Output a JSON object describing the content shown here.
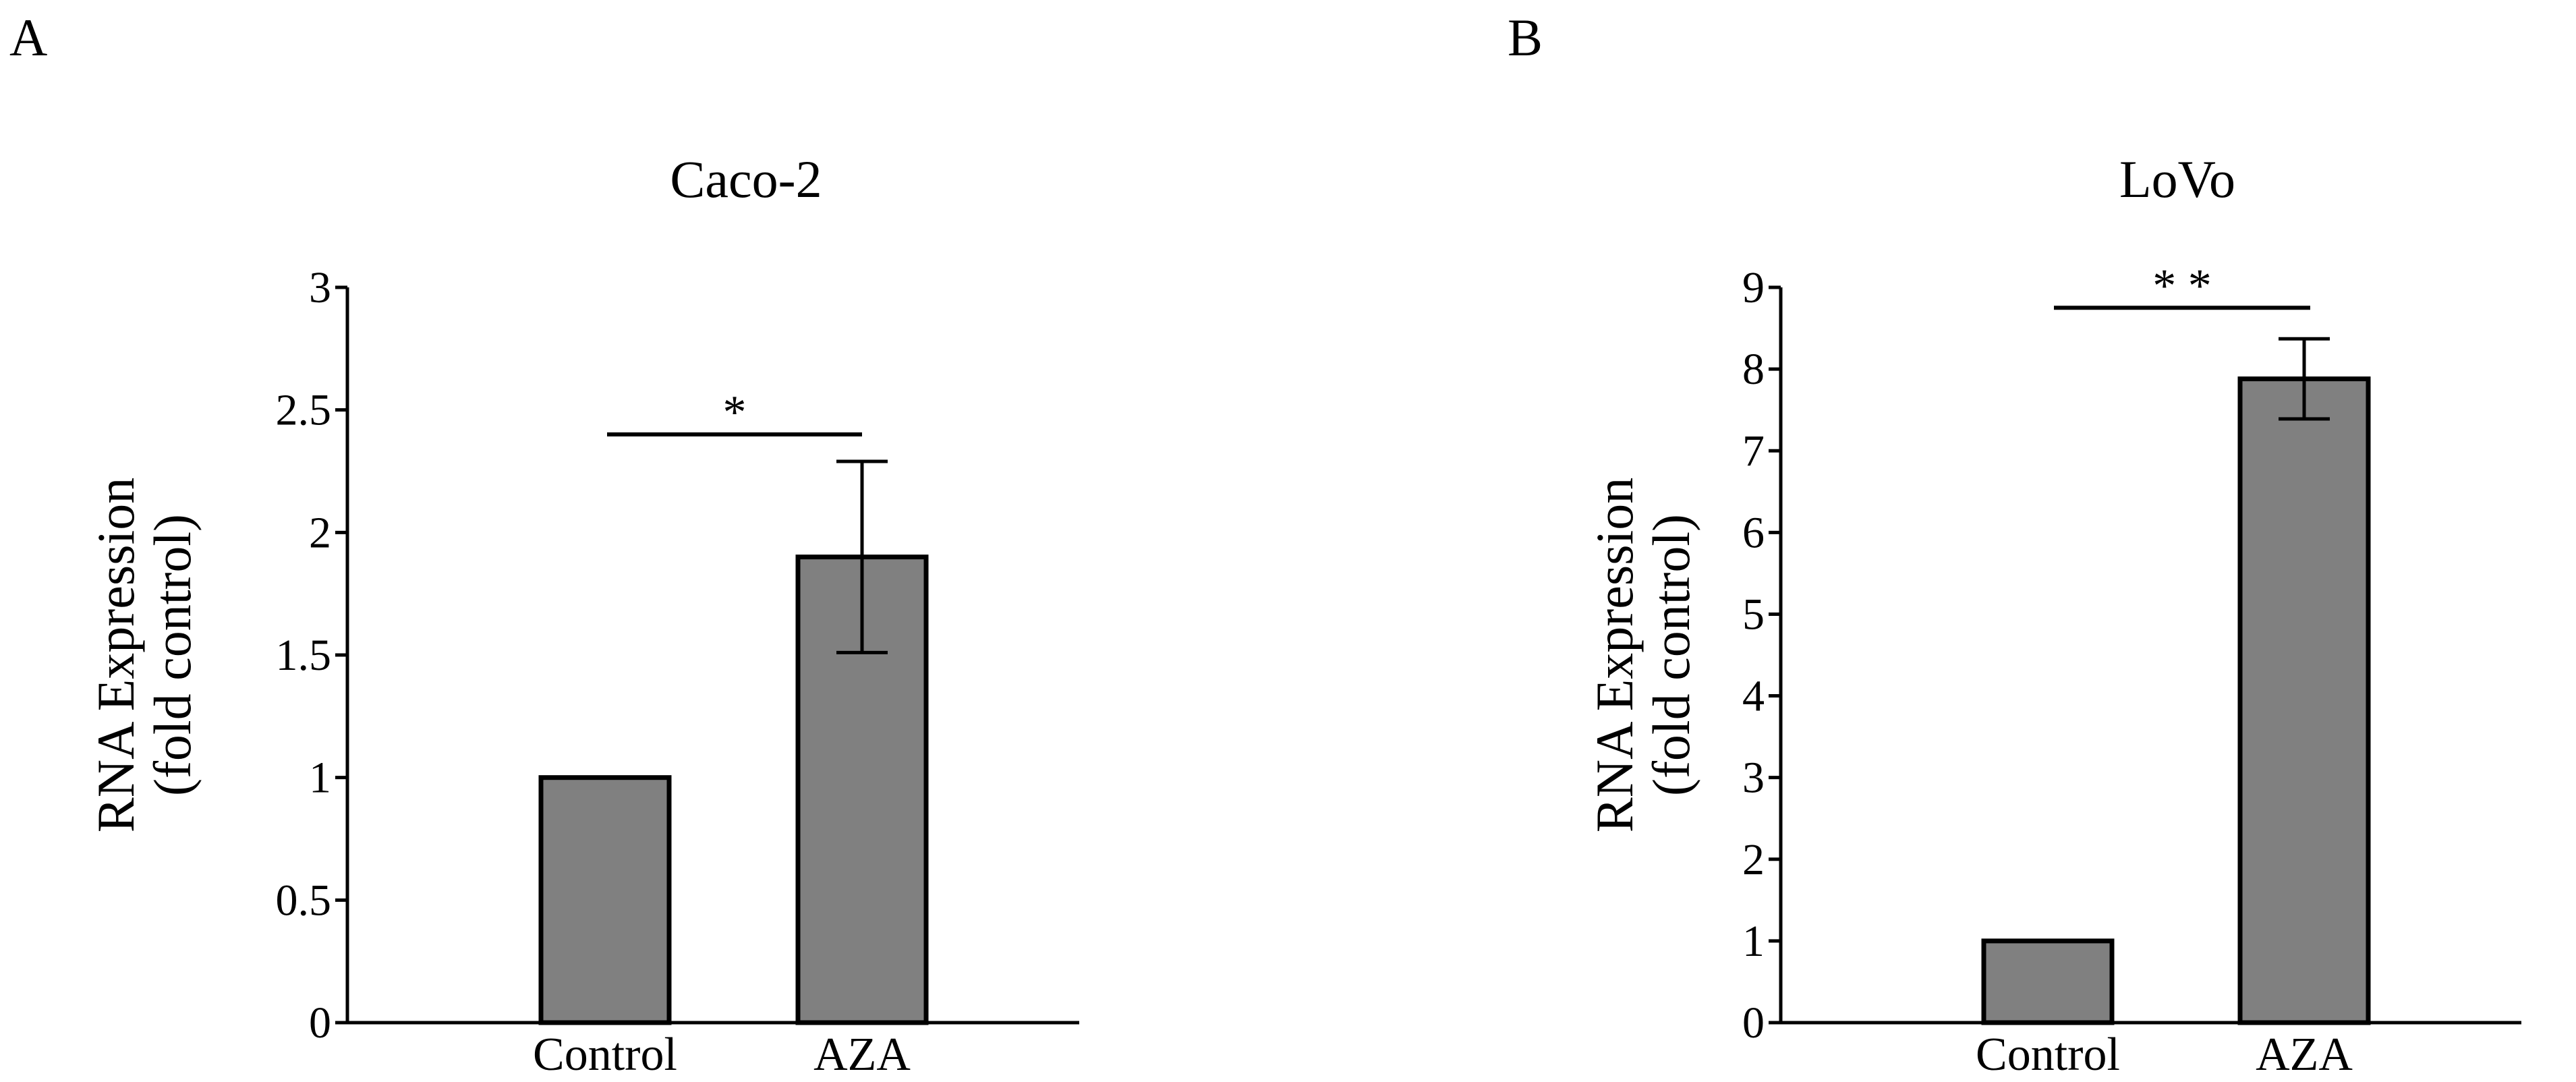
{
  "panels": [
    {
      "letter": "A",
      "chart_data": {
        "type": "bar",
        "title": "Caco-2",
        "xlabel": "",
        "ylabel": [
          "RNA Expression",
          "(fold control)"
        ],
        "categories": [
          "Control",
          "AZA"
        ],
        "values": [
          1.0,
          1.9
        ],
        "errors": [
          0,
          0.39
        ],
        "ylim": [
          0,
          3
        ],
        "yticks": [
          0,
          0.5,
          1,
          1.5,
          2,
          2.5,
          3
        ],
        "ytick_labels": [
          "0",
          "0.5",
          "1",
          "1.5",
          "2",
          "2.5",
          "3"
        ],
        "bar_color": "#808080",
        "grid": false,
        "significance": {
          "between": [
            "Control",
            "AZA"
          ],
          "label": "*",
          "level": 2.4
        }
      }
    },
    {
      "letter": "B",
      "chart_data": {
        "type": "bar",
        "title": "LoVo",
        "xlabel": "",
        "ylabel": [
          "RNA Expression",
          "(fold control)"
        ],
        "categories": [
          "Control",
          "AZA"
        ],
        "values": [
          1.0,
          7.88
        ],
        "errors": [
          0,
          0.49
        ],
        "ylim": [
          0,
          9
        ],
        "yticks": [
          0,
          1,
          2,
          3,
          4,
          5,
          6,
          7,
          8,
          9
        ],
        "ytick_labels": [
          "0",
          "1",
          "2",
          "3",
          "4",
          "5",
          "6",
          "7",
          "8",
          "9"
        ],
        "bar_color": "#808080",
        "grid": false,
        "significance": {
          "between": [
            "Control",
            "AZA"
          ],
          "label": "* *",
          "level": 8.75
        }
      }
    }
  ]
}
